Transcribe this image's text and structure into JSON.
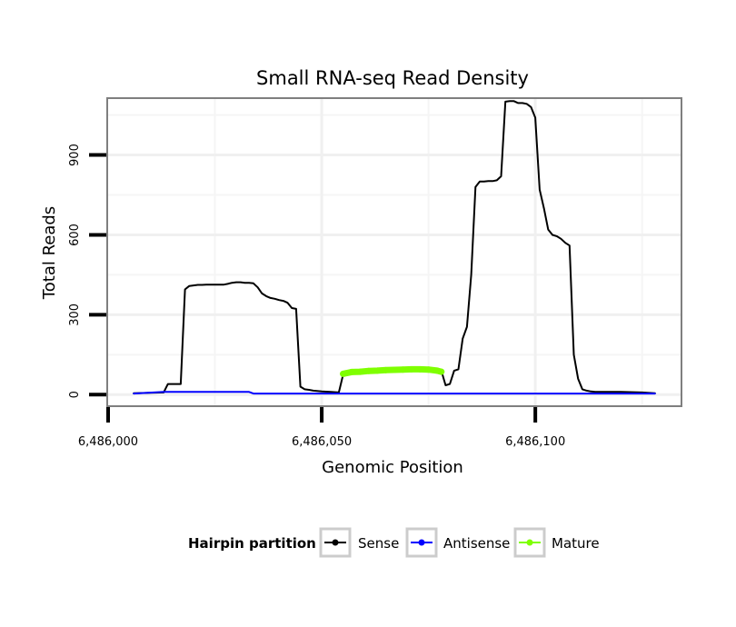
{
  "chart_data": {
    "type": "line",
    "title": "Small RNA-seq Read Density",
    "xlabel": "Genomic Position",
    "ylabel": "Total Reads",
    "xlim": [
      6486000,
      6486134
    ],
    "ylim": [
      -40,
      1110
    ],
    "x_ticks": [
      6486000,
      6486050,
      6486100
    ],
    "x_tick_labels": [
      "6,486,000",
      "6,486,050",
      "6,486,100"
    ],
    "y_ticks": [
      0,
      300,
      600,
      900
    ],
    "y_tick_labels": [
      "0",
      "300",
      "600",
      "900"
    ],
    "grid": true,
    "legend": {
      "title": "Hairpin partition",
      "placement": "bottom",
      "entries": [
        {
          "label": "Sense",
          "color": "#000000"
        },
        {
          "label": "Antisense",
          "color": "#0000ff"
        },
        {
          "label": "Mature",
          "color": "#7fff00"
        }
      ]
    },
    "series": [
      {
        "name": "Sense",
        "color": "#000000",
        "x": [
          6486006,
          6486013,
          6486014,
          6486017,
          6486018,
          6486019,
          6486020,
          6486021,
          6486022,
          6486023,
          6486024,
          6486025,
          6486026,
          6486027,
          6486028,
          6486029,
          6486030,
          6486031,
          6486032,
          6486033,
          6486034,
          6486035,
          6486036,
          6486037,
          6486038,
          6486039,
          6486040,
          6486041,
          6486042,
          6486043,
          6486044,
          6486045,
          6486046,
          6486047,
          6486048,
          6486050,
          6486052,
          6486054,
          6486055,
          6486056,
          6486058,
          6486060,
          6486062,
          6486064,
          6486066,
          6486068,
          6486070,
          6486072,
          6486074,
          6486076,
          6486078,
          6486079,
          6486080,
          6486081,
          6486082,
          6486083,
          6486084,
          6486085,
          6486086,
          6486087,
          6486088,
          6486089,
          6486090,
          6486091,
          6486092,
          6486093,
          6486094,
          6486095,
          6486096,
          6486097,
          6486098,
          6486099,
          6486100,
          6486101,
          6486102,
          6486103,
          6486104,
          6486105,
          6486106,
          6486107,
          6486108,
          6486109,
          6486110,
          6486111,
          6486112,
          6486113,
          6486114,
          6486115,
          6486116,
          6486117,
          6486120,
          6486125,
          6486128
        ],
        "values": [
          5,
          8,
          40,
          40,
          395,
          408,
          410,
          412,
          412,
          413,
          413,
          413,
          413,
          413,
          416,
          420,
          422,
          422,
          420,
          420,
          418,
          403,
          380,
          370,
          363,
          360,
          355,
          352,
          345,
          325,
          322,
          30,
          20,
          18,
          15,
          12,
          10,
          8,
          75,
          85,
          88,
          92,
          95,
          97,
          100,
          100,
          100,
          98,
          97,
          95,
          90,
          35,
          40,
          90,
          95,
          210,
          255,
          450,
          780,
          800,
          800,
          802,
          802,
          805,
          820,
          1100,
          1102,
          1102,
          1095,
          1095,
          1092,
          1080,
          1040,
          770,
          700,
          620,
          600,
          595,
          585,
          570,
          560,
          150,
          60,
          20,
          15,
          12,
          10,
          10,
          10,
          10,
          10,
          8,
          5
        ]
      },
      {
        "name": "Antisense",
        "color": "#0000ff",
        "x": [
          6486006,
          6486013,
          6486020,
          6486025,
          6486030,
          6486033,
          6486034,
          6486040,
          6486050,
          6486060,
          6486070,
          6486080,
          6486090,
          6486100,
          6486110,
          6486120,
          6486128
        ],
        "values": [
          4,
          10,
          10,
          10,
          10,
          10,
          4,
          4,
          4,
          4,
          4,
          4,
          4,
          4,
          4,
          4,
          4
        ]
      },
      {
        "name": "Mature",
        "color": "#7fff00",
        "x": [
          6486055,
          6486057,
          6486059,
          6486061,
          6486063,
          6486065,
          6486067,
          6486069,
          6486071,
          6486073,
          6486075,
          6486077,
          6486078
        ],
        "values": [
          78,
          85,
          86,
          89,
          90,
          92,
          93,
          94,
          95,
          95,
          94,
          90,
          86
        ]
      }
    ]
  }
}
